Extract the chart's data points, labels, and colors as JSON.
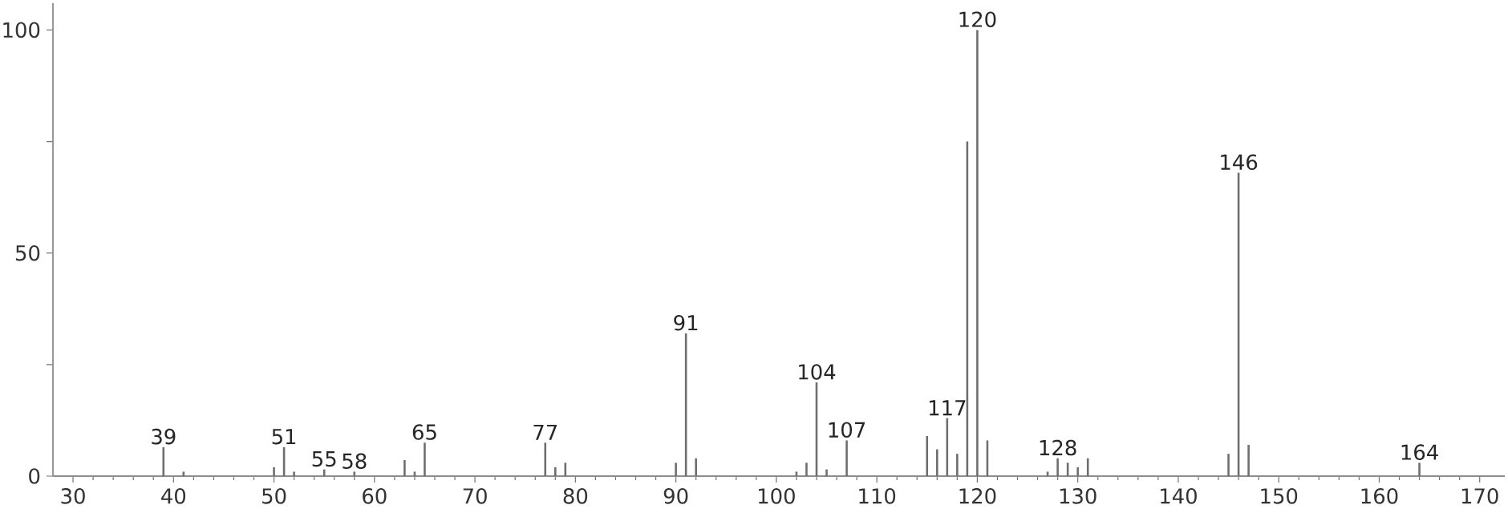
{
  "chart_data": {
    "type": "bar",
    "color": "#6e6e6e",
    "x": [
      39,
      41,
      50,
      51,
      52,
      55,
      58,
      63,
      64,
      65,
      77,
      78,
      79,
      90,
      91,
      92,
      102,
      103,
      104,
      105,
      107,
      115,
      116,
      117,
      118,
      119,
      120,
      121,
      127,
      128,
      129,
      130,
      131,
      145,
      146,
      147,
      164
    ],
    "values": [
      6.5,
      1,
      2,
      6.5,
      1,
      1.5,
      1,
      3.6,
      1,
      7.5,
      7.5,
      2,
      3,
      3,
      32,
      4,
      1,
      3,
      21,
      1.5,
      8,
      9,
      6,
      13,
      5,
      75,
      100,
      8,
      1,
      4,
      3,
      2,
      4,
      5,
      68,
      7,
      3
    ],
    "xlim": [
      28,
      172.5
    ],
    "ylim": [
      0,
      106
    ],
    "xticks": [
      30,
      40,
      50,
      60,
      70,
      80,
      90,
      100,
      110,
      120,
      130,
      140,
      150,
      160,
      170
    ],
    "yticks": [
      0,
      {
        "value": 25,
        "label": null
      },
      50,
      {
        "value": 75,
        "label": null
      },
      100
    ],
    "annotations": [
      {
        "text": "39",
        "x": 39,
        "y": 6.5
      },
      {
        "text": "51",
        "x": 51,
        "y": 6.5
      },
      {
        "text": "55",
        "x": 55,
        "y": 1.5
      },
      {
        "text": "58",
        "x": 58,
        "y": 1
      },
      {
        "text": "65",
        "x": 65,
        "y": 7.5
      },
      {
        "text": "77",
        "x": 77,
        "y": 7.5
      },
      {
        "text": "91",
        "x": 91,
        "y": 32
      },
      {
        "text": "104",
        "x": 104,
        "y": 21
      },
      {
        "text": "107",
        "x": 107,
        "y": 8
      },
      {
        "text": "117",
        "x": 117,
        "y": 13
      },
      {
        "text": "120",
        "x": 120,
        "y": 100
      },
      {
        "text": "128",
        "x": 128,
        "y": 4
      },
      {
        "text": "146",
        "x": 146,
        "y": 68
      },
      {
        "text": "164",
        "x": 164,
        "y": 3
      }
    ]
  }
}
